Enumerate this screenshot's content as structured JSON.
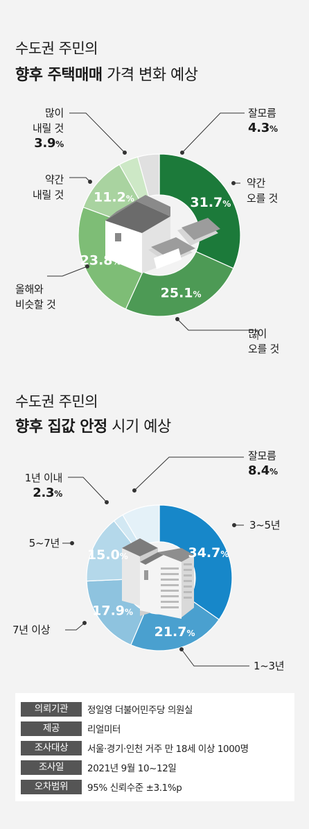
{
  "chart_data": [
    {
      "type": "pie",
      "title_line1": "수도권 주민의",
      "title_bold": "향후 주택매매",
      "title_rest": " 가격 변화 예상",
      "slices": [
        {
          "label": "약간 오를 것",
          "value": 31.7,
          "color": "#1c7a3a"
        },
        {
          "label": "많이 오를 것",
          "value": 25.1,
          "color": "#4d9a55"
        },
        {
          "label": "올해와 비슷할 것",
          "value": 23.8,
          "color": "#7ebd76"
        },
        {
          "label": "약간 내릴 것",
          "value": 11.2,
          "color": "#a9d3a0"
        },
        {
          "label": "많이 내릴 것",
          "value": 3.9,
          "color": "#cde8c6"
        },
        {
          "label": "잘모름",
          "value": 4.3,
          "color": "#e0e0e0"
        }
      ],
      "labels": {
        "unsure": {
          "l1": "잘모름",
          "pct": "4.3"
        },
        "slight_up": {
          "l1": "약간",
          "l2": "오를 것"
        },
        "much_up": {
          "l1": "많이",
          "l2": "오를 것"
        },
        "same": {
          "l1": "올해와",
          "l2": "비슷할 것"
        },
        "slight_down": {
          "l1": "약간",
          "l2": "내릴 것"
        },
        "much_down": {
          "l1": "많이",
          "l2": "내릴 것",
          "pct": "3.9"
        }
      }
    },
    {
      "type": "pie",
      "title_line1": "수도권 주민의",
      "title_bold": "향후 집값 안정",
      "title_rest": " 시기 예상",
      "slices": [
        {
          "label": "3~5년",
          "value": 34.7,
          "color": "#1787c9"
        },
        {
          "label": "1~3년",
          "value": 21.7,
          "color": "#4aa0cf"
        },
        {
          "label": "7년 이상",
          "value": 17.9,
          "color": "#8ec3df"
        },
        {
          "label": "5~7년",
          "value": 15.0,
          "color": "#b4d8ea"
        },
        {
          "label": "1년 이내",
          "value": 2.3,
          "color": "#d2e8f3"
        },
        {
          "label": "잘모름",
          "value": 8.4,
          "color": "#e4f1f8"
        }
      ],
      "labels": {
        "unsure": {
          "l1": "잘모름",
          "pct": "8.4"
        },
        "y3_5": {
          "l1": "3~5년"
        },
        "y1_3": {
          "l1": "1~3년"
        },
        "y7": {
          "l1": "7년 이상"
        },
        "y5_7": {
          "l1": "5~7년"
        },
        "y1": {
          "l1": "1년 이내",
          "pct": "2.3"
        }
      }
    }
  ],
  "pct_unit": "%",
  "info": [
    {
      "key": "의뢰기관",
      "value": "정일영 더불어민주당 의원실"
    },
    {
      "key": "제공",
      "value": "리얼미터"
    },
    {
      "key": "조사대상",
      "value": "서울·경기·인천 거주 만 18세 이상 1000명"
    },
    {
      "key": "조사일",
      "value": "2021년 9월 10~12일"
    },
    {
      "key": "오차범위",
      "value": "95% 신뢰수준 ±3.1%p"
    }
  ]
}
